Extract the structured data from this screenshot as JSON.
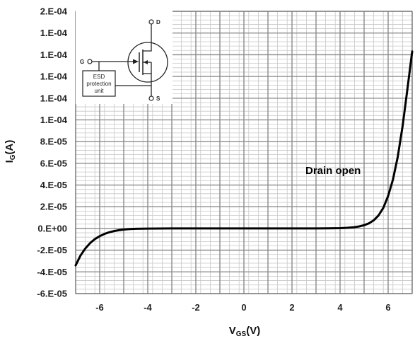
{
  "chart_data": {
    "type": "line",
    "xlabel_main": "V",
    "xlabel_sub": "GS",
    "xlabel_unit": "(V)",
    "ylabel_main": "I",
    "ylabel_sub": "G",
    "ylabel_unit": "(A)",
    "xlim": [
      -7,
      7
    ],
    "ylim": [
      -6e-05,
      0.0002
    ],
    "x_ticks": [
      -6,
      -4,
      -2,
      0,
      2,
      4,
      6
    ],
    "x_tick_labels": [
      "-6",
      "-4",
      "-2",
      "0",
      "2",
      "4",
      "6"
    ],
    "y_ticks": [
      -6e-05,
      -4e-05,
      -2e-05,
      0,
      2e-05,
      4e-05,
      6e-05,
      8e-05,
      0.0001,
      0.00012,
      0.00014,
      0.00016,
      0.00018,
      0.0002
    ],
    "y_tick_labels": [
      "-6.E-05",
      "-4.E-05",
      "-2.E-05",
      "0.E+00",
      "2.E-05",
      "4.E-05",
      "6.E-05",
      "8.E-05",
      "1.E-04",
      "1.E-04",
      "1.E-04",
      "1.E-04",
      "1.E-04",
      "2.E-04"
    ],
    "grid": true,
    "annotation": "Drain open",
    "series": [
      {
        "color": "#000000",
        "x": [
          -7.0,
          -6.8,
          -6.6,
          -6.4,
          -6.2,
          -6.0,
          -5.8,
          -5.6,
          -5.4,
          -5.2,
          -5.0,
          -4.8,
          -4.5,
          -4.0,
          -3.0,
          -2.0,
          -1.0,
          0.0,
          1.0,
          2.0,
          3.0,
          3.5,
          4.0,
          4.3,
          4.6,
          4.8,
          5.0,
          5.2,
          5.4,
          5.6,
          5.8,
          6.0,
          6.2,
          6.4,
          6.6,
          6.8,
          7.0
        ],
        "y": [
          -3.4e-05,
          -2.5e-05,
          -1.85e-05,
          -1.35e-05,
          -9.8e-06,
          -7.1e-06,
          -5e-06,
          -3.5e-06,
          -2.4e-06,
          -1.6e-06,
          -1e-06,
          -6e-07,
          -3e-07,
          -1e-07,
          0,
          0,
          0,
          0,
          0,
          0,
          0,
          1e-07,
          3e-07,
          6e-07,
          1.2e-06,
          1.9e-06,
          3e-06,
          4.7e-06,
          7.5e-06,
          1.2e-05,
          1.9e-05,
          3e-05,
          4.5e-05,
          6.6e-05,
          9.4e-05,
          0.000128,
          0.000163
        ]
      }
    ],
    "inset": {
      "pin_gate": "G",
      "pin_drain": "D",
      "pin_source": "S",
      "esd_lines": [
        "ESD",
        "protection",
        "unit"
      ]
    }
  }
}
